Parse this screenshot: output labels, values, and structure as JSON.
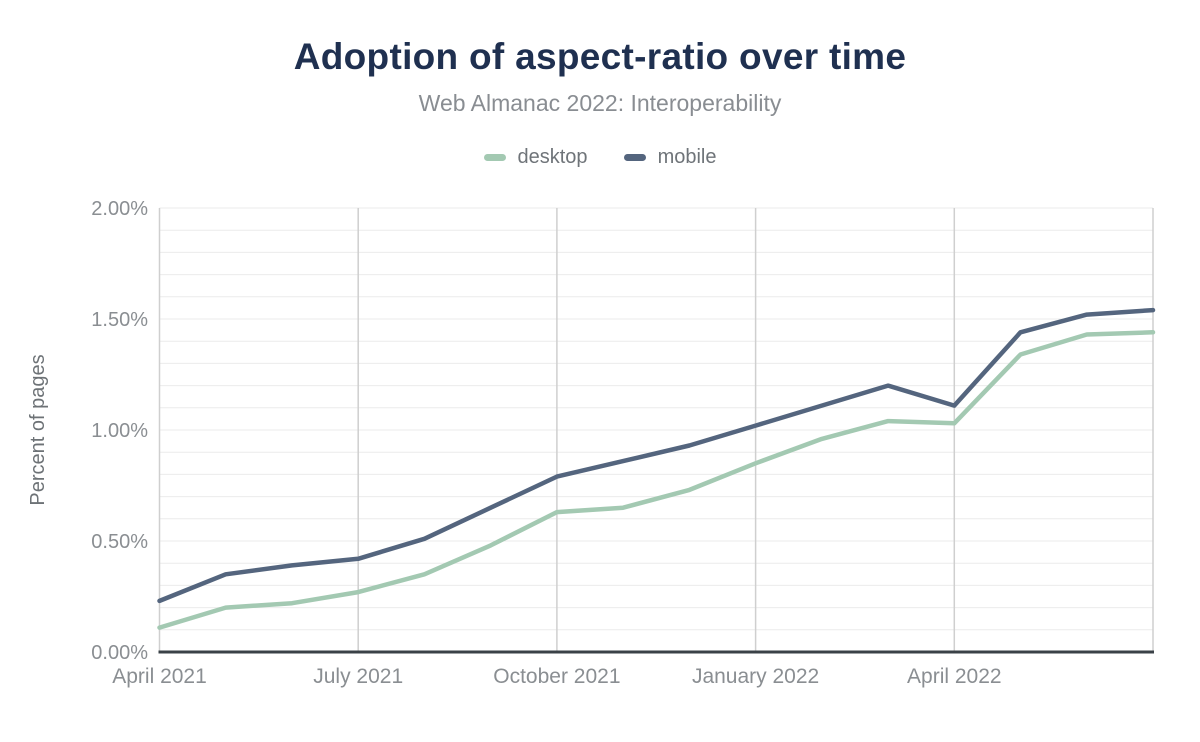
{
  "page": {
    "title": "Adoption of aspect-ratio over time",
    "subtitle": "Web Almanac 2022: Interoperability"
  },
  "axes": {
    "ylabel": "Percent of pages",
    "y_ticks": [
      "0.00%",
      "0.50%",
      "1.00%",
      "1.50%",
      "2.00%"
    ],
    "x_ticks": [
      "April 2021",
      "July 2021",
      "October 2021",
      "January 2022",
      "April 2022"
    ]
  },
  "chart_data": {
    "type": "line",
    "title": "Adoption of aspect-ratio over time",
    "subtitle": "Web Almanac 2022: Interoperability",
    "xlabel": "",
    "ylabel": "Percent of pages",
    "unit": "% of pages",
    "x": [
      "2021-04",
      "2021-05",
      "2021-06",
      "2021-07",
      "2021-08",
      "2021-09",
      "2021-10",
      "2021-11",
      "2021-12",
      "2022-01",
      "2022-02",
      "2022-03",
      "2022-04",
      "2022-05",
      "2022-06",
      "2022-07"
    ],
    "x_tick_labels": [
      "April 2021",
      "July 2021",
      "October 2021",
      "January 2022",
      "April 2022"
    ],
    "x_tick_indices": [
      0,
      3,
      6,
      9,
      12
    ],
    "grid_x_indices": [
      0,
      3,
      6,
      9,
      12,
      15
    ],
    "ylim": [
      0,
      2
    ],
    "y_tick_step": 0.5,
    "y_minor_step": 0.1,
    "grid": true,
    "legend_position": "top",
    "series": [
      {
        "name": "desktop",
        "color": "#a3c9b2",
        "values": [
          0.11,
          0.2,
          0.22,
          0.27,
          0.35,
          0.48,
          0.63,
          0.65,
          0.73,
          0.85,
          0.96,
          1.04,
          1.03,
          1.34,
          1.43,
          1.44
        ]
      },
      {
        "name": "mobile",
        "color": "#54657e",
        "values": [
          0.23,
          0.35,
          0.39,
          0.42,
          0.51,
          0.65,
          0.79,
          0.86,
          0.93,
          1.02,
          1.11,
          1.2,
          1.11,
          1.44,
          1.52,
          1.54
        ]
      }
    ]
  },
  "colors": {
    "title": "#1f3050",
    "subtitle": "#898d92",
    "legend_text": "#6f7479",
    "tick_label": "#8a8e92",
    "ylabel_text": "#6d7276",
    "axis_line": "#3a4147",
    "grid_minor": "#ebebeb",
    "grid_vertical": "#cfcfcf",
    "background": "#ffffff"
  }
}
